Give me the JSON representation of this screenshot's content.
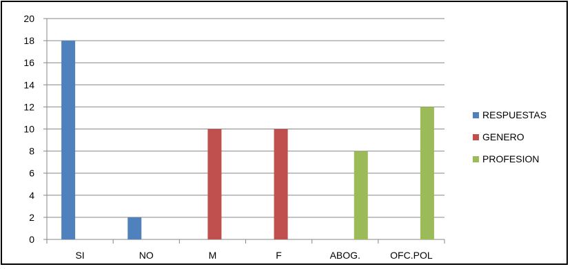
{
  "chart_data": {
    "type": "bar",
    "categories": [
      "SI",
      "NO",
      "M",
      "F",
      "ABOG.",
      "OFC.POL"
    ],
    "series": [
      {
        "name": "RESPUESTAS",
        "color": "#4F81BD",
        "values": [
          18,
          2,
          null,
          null,
          null,
          null
        ]
      },
      {
        "name": "GENERO",
        "color": "#C0504D",
        "values": [
          null,
          null,
          10,
          10,
          null,
          null
        ]
      },
      {
        "name": "PROFESION",
        "color": "#9BBB59",
        "values": [
          null,
          null,
          null,
          null,
          8,
          12
        ]
      }
    ],
    "y_ticks": [
      0,
      2,
      4,
      6,
      8,
      10,
      12,
      14,
      16,
      18,
      20
    ],
    "ylim": [
      0,
      20
    ],
    "grid": true,
    "legend_position": "right",
    "title": "",
    "xlabel": "",
    "ylabel": ""
  }
}
